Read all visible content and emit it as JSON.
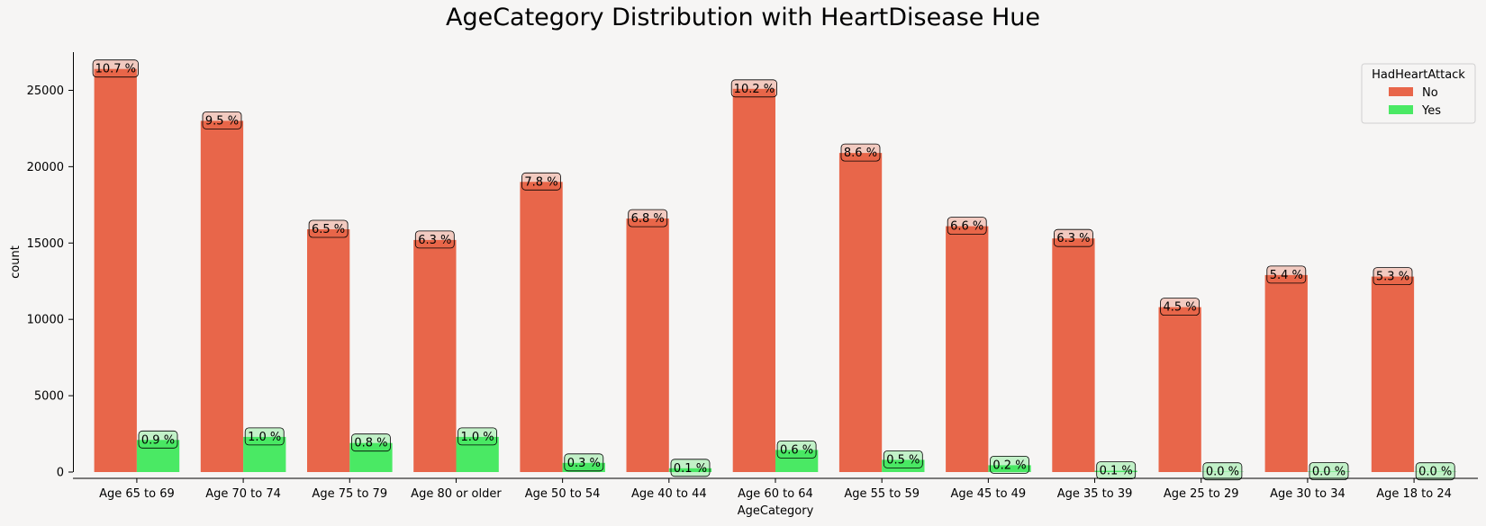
{
  "chart_data": {
    "type": "bar",
    "title": "AgeCategory Distribution with HeartDisease Hue",
    "xlabel": "AgeCategory",
    "ylabel": "count",
    "ylim": [
      0,
      27500
    ],
    "yticks": [
      0,
      5000,
      10000,
      15000,
      20000,
      25000
    ],
    "categories": [
      "Age 65 to 69",
      "Age 70 to 74",
      "Age 75 to 79",
      "Age 80 or older",
      "Age 50 to 54",
      "Age 40 to 44",
      "Age 60 to 64",
      "Age 55 to 59",
      "Age 45 to 49",
      "Age 35 to 39",
      "Age 25 to 29",
      "Age 30 to 34",
      "Age 18 to 24"
    ],
    "legend": {
      "title": "HadHeartAttack",
      "placement": "top-right"
    },
    "series": [
      {
        "name": "No",
        "color": "#e8664a",
        "values": [
          26400,
          23000,
          15900,
          15200,
          19000,
          16600,
          25100,
          20900,
          16100,
          15300,
          10800,
          12900,
          12800
        ],
        "labels": [
          "10.7 %",
          "9.5 %",
          "6.5 %",
          "6.3 %",
          "7.8 %",
          "6.8 %",
          "10.2 %",
          "8.6 %",
          "6.6 %",
          "6.3 %",
          "4.5 %",
          "5.4 %",
          "5.3 %"
        ]
      },
      {
        "name": "Yes",
        "color": "#4ae964",
        "values": [
          2100,
          2300,
          1900,
          2300,
          600,
          250,
          1450,
          800,
          450,
          80,
          20,
          30,
          15
        ],
        "labels": [
          "0.9 %",
          "1.0 %",
          "0.8 %",
          "1.0 %",
          "0.3 %",
          "0.1 %",
          "0.6 %",
          "0.5 %",
          "0.2 %",
          "0.1 %",
          "0.0 %",
          "0.0 %",
          "0.0 %"
        ]
      }
    ]
  }
}
